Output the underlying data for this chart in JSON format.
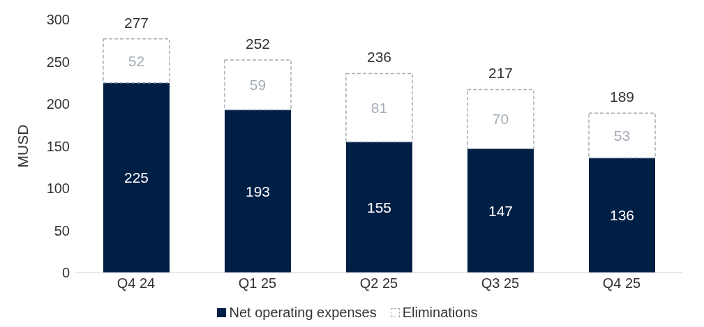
{
  "chart_data": {
    "type": "bar",
    "ylabel": "MUSD",
    "categories": [
      "Q4 24",
      "Q1 25",
      "Q2 25",
      "Q3 25",
      "Q4 25"
    ],
    "series": [
      {
        "name": "Net operating expenses",
        "color": "#001f45",
        "values": [
          225,
          193,
          155,
          147,
          136
        ]
      },
      {
        "name": "Eliminations",
        "color": "#a5adb8",
        "line_style": "dashed",
        "values": [
          52,
          59,
          81,
          70,
          53
        ]
      }
    ],
    "stacked": true,
    "data_labels": true,
    "totals": [
      "277",
      "252",
      "236",
      "217",
      "189"
    ],
    "ylim": [
      0,
      300
    ],
    "yticks": [
      0,
      50,
      100,
      150,
      200,
      250,
      300
    ],
    "grid": false,
    "legend": "bottom"
  }
}
